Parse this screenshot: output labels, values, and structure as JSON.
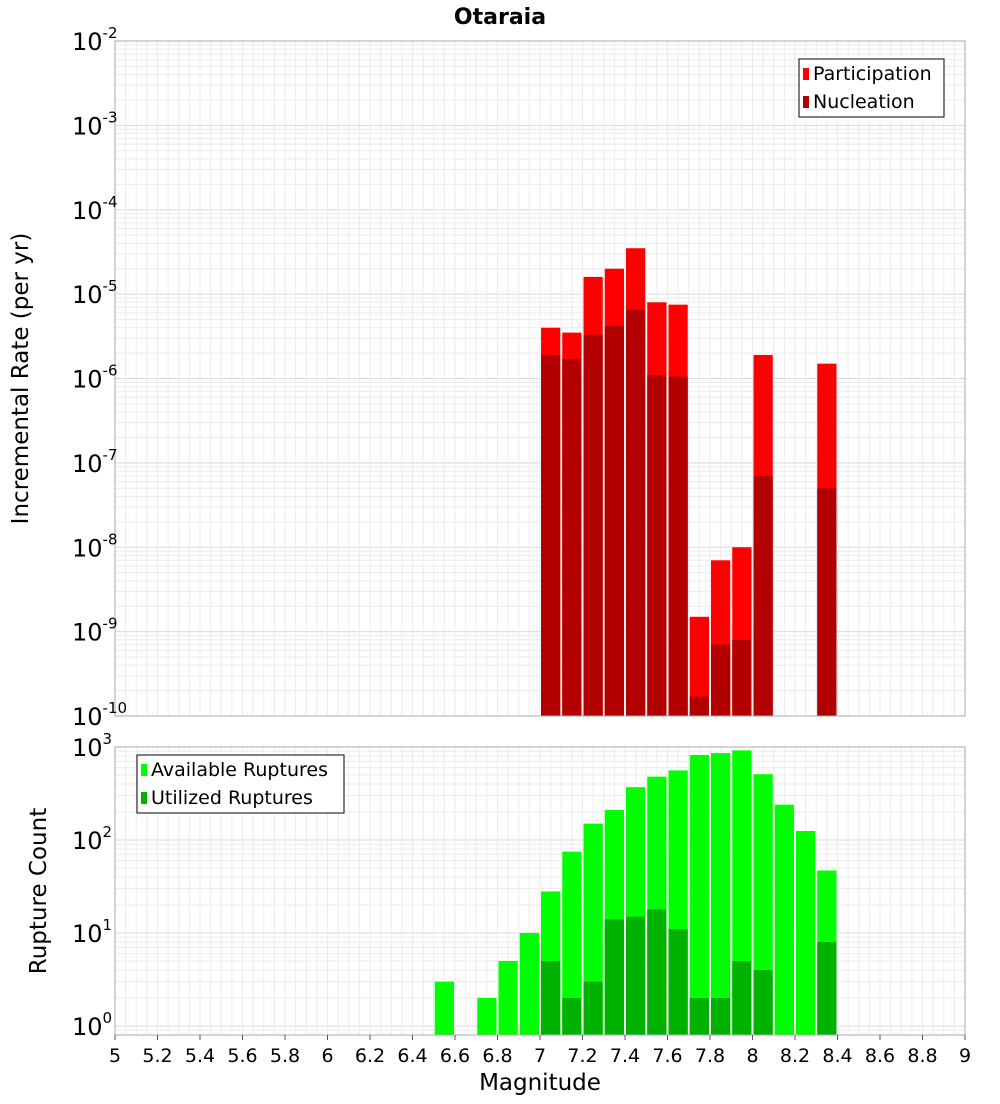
{
  "chart_data": {
    "title": "Otaraia",
    "xlabel": "Magnitude",
    "xlim": [
      5,
      9
    ],
    "x_ticks": [
      5,
      5.2,
      5.4,
      5.6,
      5.8,
      6,
      6.2,
      6.4,
      6.6,
      6.8,
      7,
      7.2,
      7.4,
      7.6,
      7.8,
      8,
      8.2,
      8.4,
      8.6,
      8.8,
      9
    ],
    "x_tick_labels": [
      "5",
      "5.2",
      "5.4",
      "5.6",
      "5.8",
      "6",
      "6.2",
      "6.4",
      "6.6",
      "6.8",
      "7",
      "7.2",
      "7.4",
      "7.6",
      "7.8",
      "8",
      "8.2",
      "8.4",
      "8.6",
      "8.8",
      "9"
    ],
    "bin_width": 0.1,
    "panels": [
      {
        "type": "bar",
        "ylabel": "Incremental Rate (per yr)",
        "yscale": "log",
        "ylim": [
          1e-10,
          0.01
        ],
        "y_tick_exponents": [
          -10,
          -9,
          -8,
          -7,
          -6,
          -5,
          -4,
          -3,
          -2
        ],
        "grid": true,
        "legend_position": "top-right",
        "series": [
          {
            "name": "Participation",
            "color": "#ff0000",
            "x": [
              7.05,
              7.15,
              7.25,
              7.35,
              7.45,
              7.55,
              7.65,
              7.75,
              7.85,
              7.95,
              8.05,
              8.35
            ],
            "values": [
              4e-06,
              3.5e-06,
              1.6e-05,
              2e-05,
              3.5e-05,
              8e-06,
              7.5e-06,
              1.5e-09,
              7e-09,
              1e-08,
              1.9e-06,
              1.5e-06
            ]
          },
          {
            "name": "Nucleation",
            "color": "#b20000",
            "x": [
              7.05,
              7.15,
              7.25,
              7.35,
              7.45,
              7.55,
              7.65,
              7.75,
              7.85,
              7.95,
              8.05,
              8.35
            ],
            "values": [
              1.9e-06,
              1.7e-06,
              3.3e-06,
              4.2e-06,
              6.5e-06,
              1.1e-06,
              1.05e-06,
              1.7e-10,
              7e-10,
              8e-10,
              7e-08,
              5e-08
            ]
          }
        ]
      },
      {
        "type": "bar",
        "ylabel": "Rupture Count",
        "yscale": "log",
        "ylim": [
          0.8,
          1000
        ],
        "y_tick_exponents": [
          0,
          1,
          2,
          3
        ],
        "grid": true,
        "legend_position": "top-left",
        "series": [
          {
            "name": "Available Ruptures",
            "color": "#00ff00",
            "x": [
              6.55,
              6.75,
              6.85,
              6.95,
              7.05,
              7.15,
              7.25,
              7.35,
              7.45,
              7.55,
              7.65,
              7.75,
              7.85,
              7.95,
              8.05,
              8.15,
              8.25,
              8.35
            ],
            "values": [
              3,
              2,
              5,
              10,
              28,
              75,
              150,
              210,
              370,
              480,
              560,
              820,
              860,
              920,
              510,
              240,
              125,
              47
            ]
          },
          {
            "name": "Utilized Ruptures",
            "color": "#00b200",
            "x": [
              7.05,
              7.15,
              7.25,
              7.35,
              7.45,
              7.55,
              7.65,
              7.75,
              7.85,
              7.95,
              8.05,
              8.35
            ],
            "values": [
              5,
              2,
              3,
              14,
              15,
              18,
              11,
              2,
              2,
              5,
              4,
              8
            ]
          }
        ]
      }
    ]
  }
}
